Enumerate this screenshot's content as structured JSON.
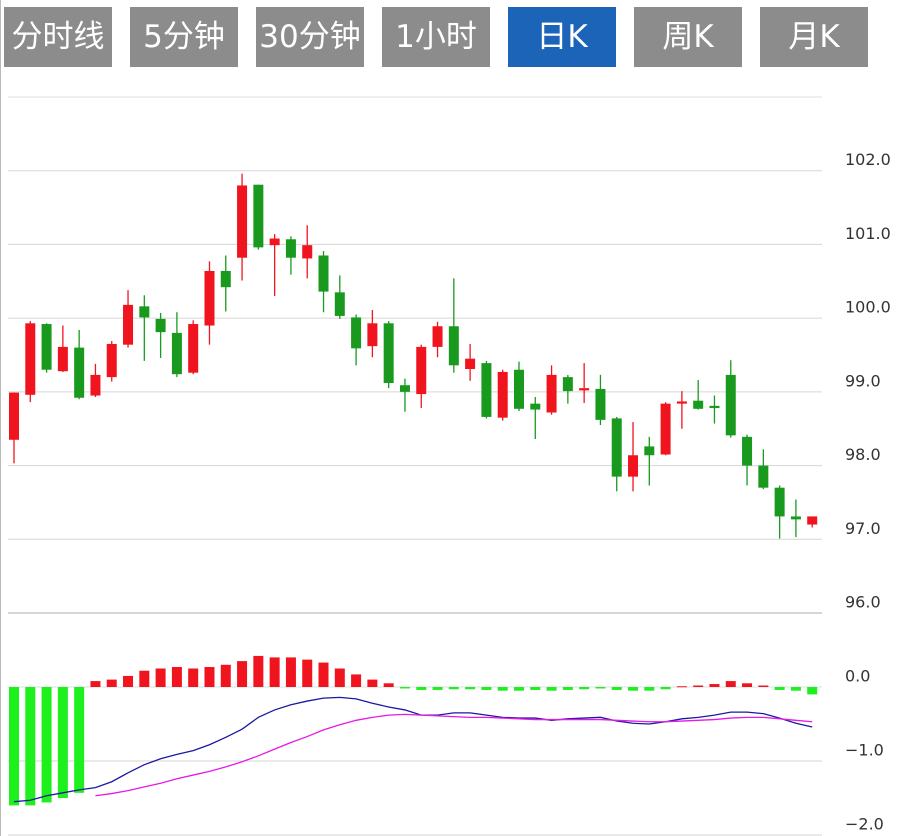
{
  "tabs": [
    {
      "label": "分时线",
      "active": false
    },
    {
      "label": "5分钟",
      "active": false
    },
    {
      "label": "30分钟",
      "active": false
    },
    {
      "label": "1小时",
      "active": false
    },
    {
      "label": "日K",
      "active": true
    },
    {
      "label": "周K",
      "active": false
    },
    {
      "label": "月K",
      "active": false
    }
  ],
  "chart_data": [
    {
      "type": "candlestick",
      "up_color": "#f0141e",
      "down_color": "#199a1e",
      "open": [
        98.35,
        98.96,
        99.92,
        99.28,
        99.6,
        98.95,
        99.2,
        99.64,
        100.16,
        99.99,
        99.8,
        99.26,
        99.9,
        100.64,
        100.82,
        101.81,
        100.99,
        101.07,
        100.81,
        100.85,
        100.35,
        100.01,
        99.62,
        99.93,
        99.09,
        98.97,
        99.61,
        99.89,
        99.31,
        99.39,
        98.65,
        99.3,
        98.84,
        98.72,
        99.2,
        99.02,
        99.04,
        98.64,
        97.85,
        98.26,
        98.15,
        98.84,
        98.88,
        98.81,
        99.23,
        98.39,
        98.0,
        97.7,
        97.31,
        97.2
      ],
      "high": [
        98.99,
        99.96,
        99.93,
        99.9,
        99.84,
        99.38,
        99.69,
        100.38,
        100.31,
        100.07,
        100.08,
        99.97,
        100.77,
        100.85,
        101.96,
        101.81,
        101.14,
        101.11,
        101.26,
        100.91,
        100.58,
        100.05,
        100.11,
        99.96,
        99.18,
        99.64,
        99.95,
        100.54,
        99.65,
        99.42,
        99.3,
        99.41,
        98.93,
        99.36,
        99.23,
        99.39,
        99.23,
        98.66,
        98.59,
        98.39,
        98.86,
        99.01,
        99.16,
        98.95,
        99.43,
        98.42,
        98.22,
        97.73,
        97.54,
        97.31
      ],
      "low": [
        98.03,
        98.86,
        99.26,
        99.27,
        98.9,
        98.93,
        99.14,
        99.6,
        99.42,
        99.46,
        99.2,
        99.24,
        99.64,
        100.09,
        100.51,
        100.93,
        100.3,
        100.59,
        100.54,
        100.08,
        99.99,
        99.36,
        99.47,
        99.05,
        98.73,
        98.78,
        99.47,
        99.26,
        99.15,
        98.64,
        98.61,
        98.74,
        98.36,
        98.69,
        98.84,
        98.85,
        98.55,
        97.65,
        97.65,
        97.73,
        98.14,
        98.5,
        98.76,
        98.57,
        98.38,
        97.73,
        97.68,
        97.01,
        97.03,
        97.16
      ],
      "close": [
        98.99,
        99.93,
        99.3,
        99.61,
        98.92,
        99.23,
        99.65,
        100.18,
        100.01,
        99.81,
        99.24,
        99.92,
        100.64,
        100.42,
        101.8,
        100.96,
        101.08,
        100.82,
        100.99,
        100.36,
        100.03,
        99.59,
        99.93,
        99.12,
        99.0,
        99.61,
        99.89,
        99.36,
        99.45,
        98.66,
        99.27,
        98.77,
        98.76,
        99.23,
        99.01,
        99.05,
        98.62,
        97.85,
        98.14,
        98.14,
        98.84,
        98.87,
        98.77,
        98.78,
        98.41,
        98.0,
        97.7,
        97.31,
        97.27,
        97.31
      ],
      "ylim": [
        96,
        103
      ],
      "yticks": [
        {
          "value": 96,
          "label": "96.0"
        },
        {
          "value": 97,
          "label": "97.0"
        },
        {
          "value": 98,
          "label": "98.0"
        },
        {
          "value": 99,
          "label": "99.0"
        },
        {
          "value": 100,
          "label": "100.0"
        },
        {
          "value": 101,
          "label": "101.0"
        },
        {
          "value": 102,
          "label": "102.0"
        }
      ],
      "grid": true
    },
    {
      "type": "macd",
      "ylim": [
        -2,
        1
      ],
      "yticks": [
        {
          "value": 0,
          "label": "0.0"
        },
        {
          "value": -1,
          "label": "−1.0"
        },
        {
          "value": -2,
          "label": "−2.0"
        }
      ],
      "grid": true,
      "series": [
        {
          "type": "bar",
          "up_color": "#f0141e",
          "down_color": "#1ef01e",
          "values": [
            -1.6,
            -1.6,
            -1.56,
            -1.5,
            -1.43,
            0.08,
            0.1,
            0.15,
            0.22,
            0.25,
            0.27,
            0.25,
            0.27,
            0.3,
            0.35,
            0.42,
            0.4,
            0.4,
            0.37,
            0.33,
            0.25,
            0.17,
            0.1,
            0.05,
            -0.02,
            -0.04,
            -0.04,
            -0.03,
            -0.03,
            -0.04,
            -0.05,
            -0.05,
            -0.04,
            -0.05,
            -0.04,
            -0.03,
            -0.02,
            -0.04,
            -0.05,
            -0.05,
            -0.03,
            0.01,
            0.02,
            0.04,
            0.08,
            0.05,
            0.02,
            -0.04,
            -0.05,
            -0.1
          ]
        },
        {
          "type": "line",
          "color": "#1a1aa0",
          "values": [
            -1.55,
            -1.53,
            -1.47,
            -1.43,
            -1.39,
            -1.36,
            -1.28,
            -1.16,
            -1.05,
            -0.97,
            -0.91,
            -0.86,
            -0.78,
            -0.68,
            -0.57,
            -0.41,
            -0.31,
            -0.24,
            -0.19,
            -0.15,
            -0.14,
            -0.16,
            -0.22,
            -0.27,
            -0.31,
            -0.38,
            -0.38,
            -0.35,
            -0.35,
            -0.38,
            -0.41,
            -0.42,
            -0.42,
            -0.45,
            -0.43,
            -0.42,
            -0.41,
            -0.46,
            -0.49,
            -0.5,
            -0.47,
            -0.43,
            -0.41,
            -0.38,
            -0.34,
            -0.34,
            -0.36,
            -0.42,
            -0.49,
            -0.54
          ]
        },
        {
          "type": "line",
          "color": "#e619e6",
          "values": [
            null,
            null,
            null,
            null,
            null,
            -1.47,
            -1.44,
            -1.4,
            -1.35,
            -1.3,
            -1.24,
            -1.19,
            -1.14,
            -1.08,
            -1.01,
            -0.93,
            -0.84,
            -0.75,
            -0.67,
            -0.58,
            -0.51,
            -0.45,
            -0.41,
            -0.38,
            -0.37,
            -0.38,
            -0.39,
            -0.4,
            -0.41,
            -0.41,
            -0.42,
            -0.43,
            -0.44,
            -0.44,
            -0.44,
            -0.44,
            -0.44,
            -0.45,
            -0.46,
            -0.47,
            -0.47,
            -0.46,
            -0.45,
            -0.44,
            -0.42,
            -0.41,
            -0.41,
            -0.43,
            -0.45,
            -0.47
          ]
        }
      ]
    }
  ]
}
